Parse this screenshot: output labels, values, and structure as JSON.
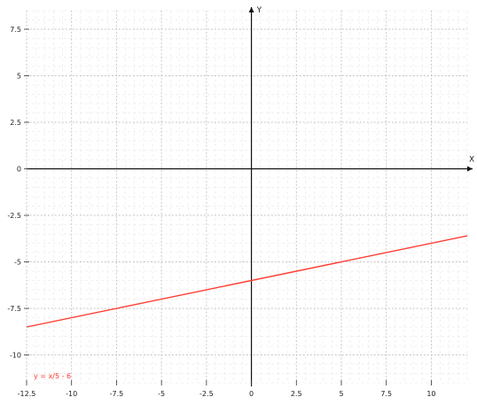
{
  "chart_data": {
    "type": "line",
    "title": "",
    "xlabel": "X",
    "ylabel": "Y",
    "xlim": [
      -12.5,
      12
    ],
    "ylim": [
      -11.5,
      8.5
    ],
    "x_ticks": [
      -12.5,
      -10,
      -7.5,
      -5,
      -2.5,
      0,
      2.5,
      5,
      7.5,
      10
    ],
    "x_tick_labels": [
      "-12.5",
      "-10",
      "-7.5",
      "-5",
      "-2.5",
      "0",
      "2.5",
      "5",
      "7.5",
      "10"
    ],
    "y_ticks": [
      7.5,
      5,
      2.5,
      0,
      -2.5,
      -5,
      -7.5,
      -10
    ],
    "y_tick_labels": [
      "7.5",
      "5",
      "2.5",
      "0",
      "-2.5",
      "-5",
      "-7.5",
      "-10"
    ],
    "grid": true,
    "series": [
      {
        "name": "y = x/5 - 6",
        "color": "#ff3b30",
        "x": [
          -12.5,
          12
        ],
        "y": [
          -8.5,
          -3.6
        ]
      }
    ],
    "legend_position": "bottom-left"
  }
}
